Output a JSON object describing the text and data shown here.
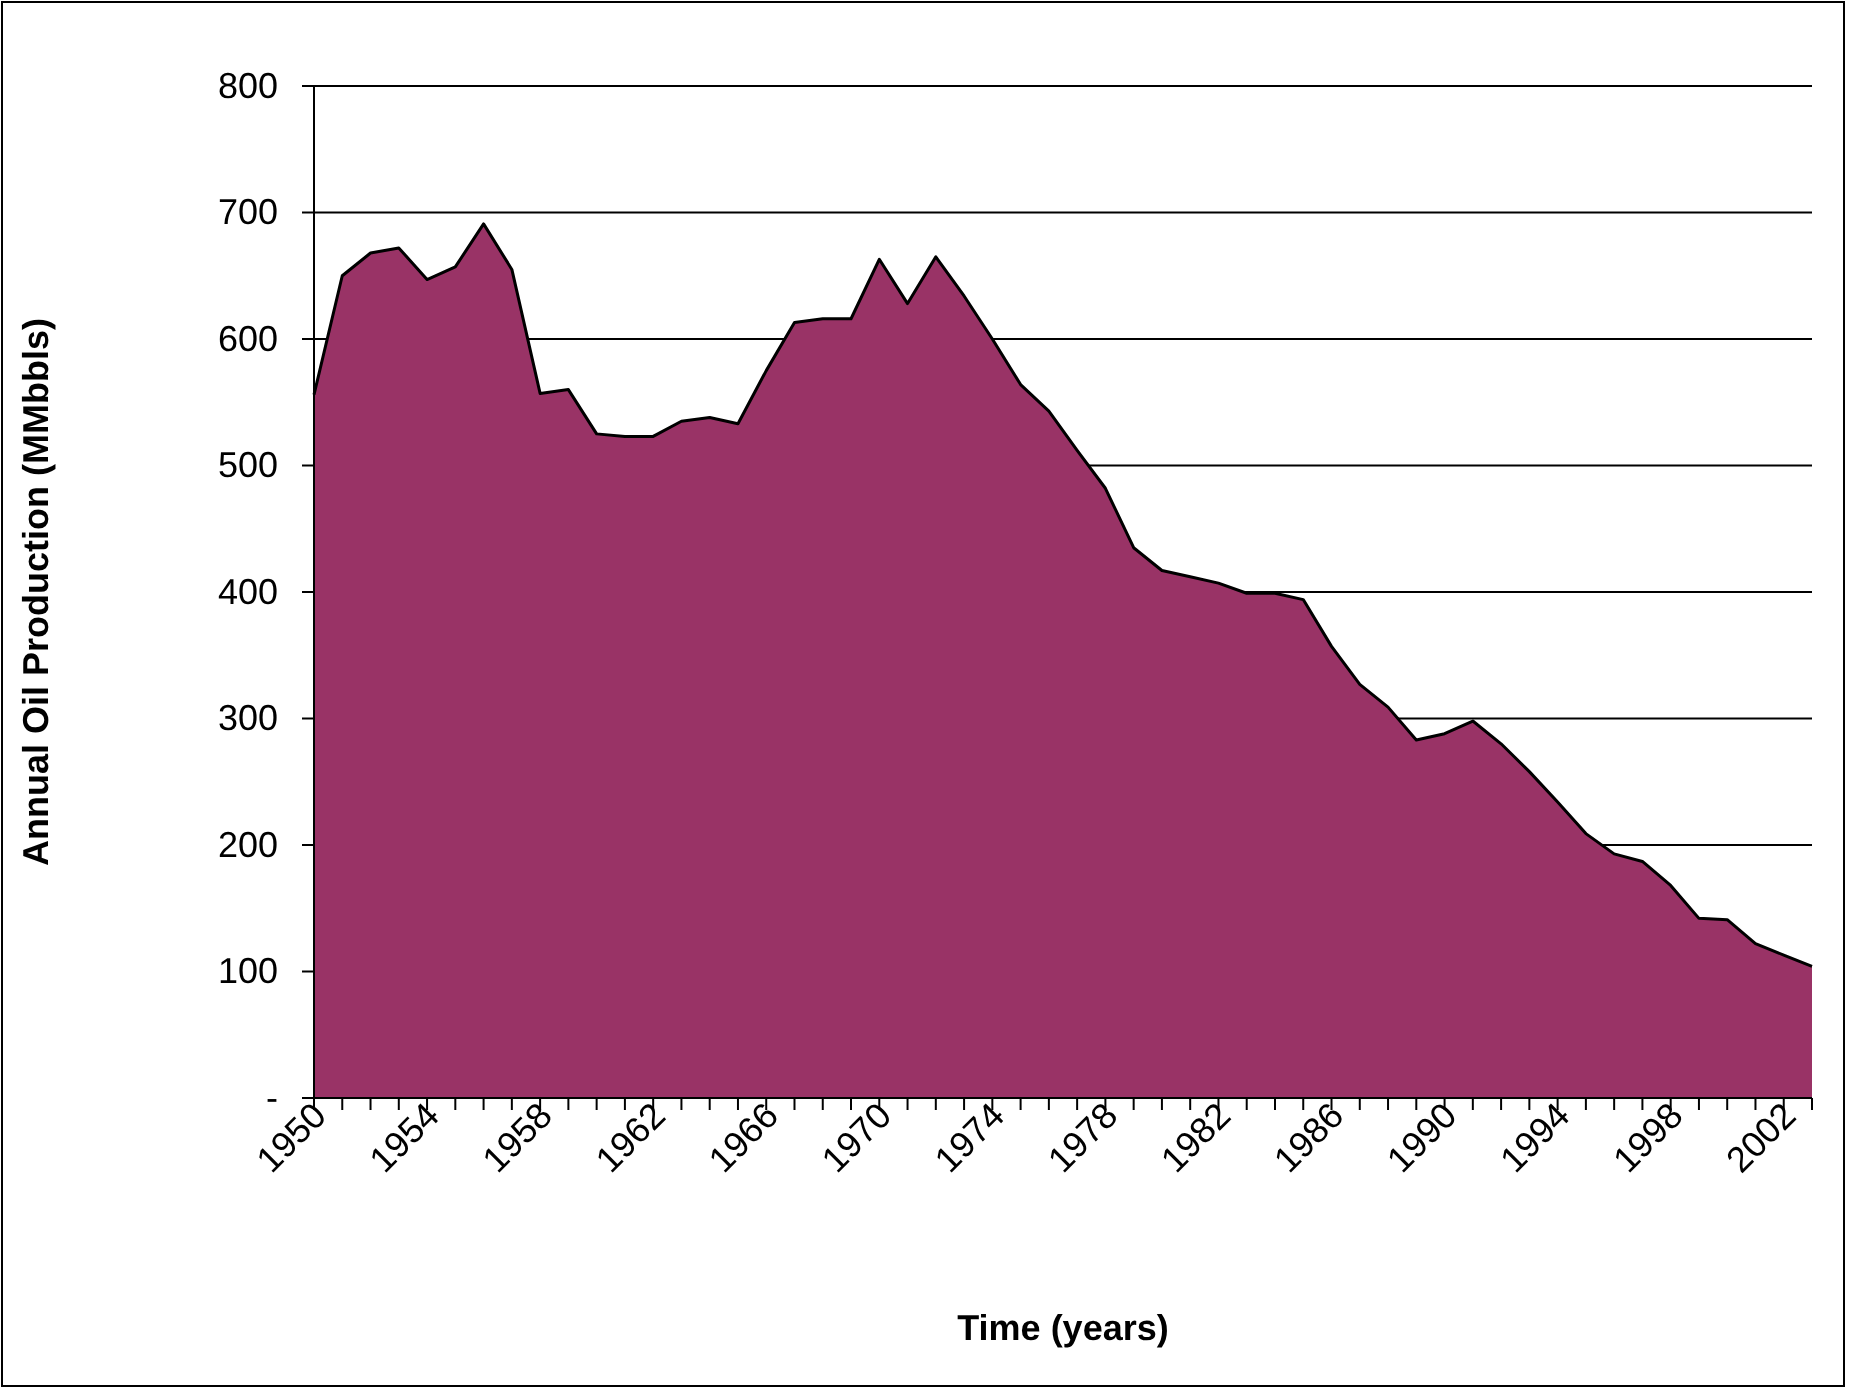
{
  "chart_data": {
    "type": "area",
    "xlabel": "Time (years)",
    "ylabel": "Annual Oil Production (MMbbls)",
    "categories": [
      "1950",
      null,
      null,
      null,
      "1954",
      null,
      null,
      null,
      "1958",
      null,
      null,
      null,
      "1962",
      null,
      null,
      null,
      "1966",
      null,
      null,
      null,
      "1970",
      null,
      null,
      null,
      "1974",
      null,
      null,
      null,
      "1978",
      null,
      null,
      null,
      "1982",
      null,
      null,
      null,
      "1986",
      null,
      null,
      null,
      "1990",
      null,
      null,
      null,
      "1994",
      null,
      null,
      null,
      "1998",
      null,
      null,
      null,
      "2002",
      null
    ],
    "series": [
      {
        "color": "#993366",
        "values": [
          556,
          650,
          668,
          672,
          647,
          657,
          691,
          655,
          557,
          560,
          525,
          523,
          523,
          535,
          538,
          533,
          575,
          613,
          616,
          616,
          663,
          628,
          665,
          634,
          600,
          564,
          543,
          512,
          482,
          435,
          417,
          412,
          407,
          399,
          399,
          394,
          357,
          327,
          309,
          283,
          288,
          298,
          280,
          258,
          234,
          209,
          193,
          187,
          168,
          142,
          141,
          122,
          113,
          104
        ]
      }
    ],
    "ylim": [
      0,
      800
    ],
    "yticks": [
      {
        "value": 0,
        "label": "-"
      },
      100,
      200,
      300,
      400,
      500,
      600,
      700,
      800
    ],
    "grid": "y"
  }
}
